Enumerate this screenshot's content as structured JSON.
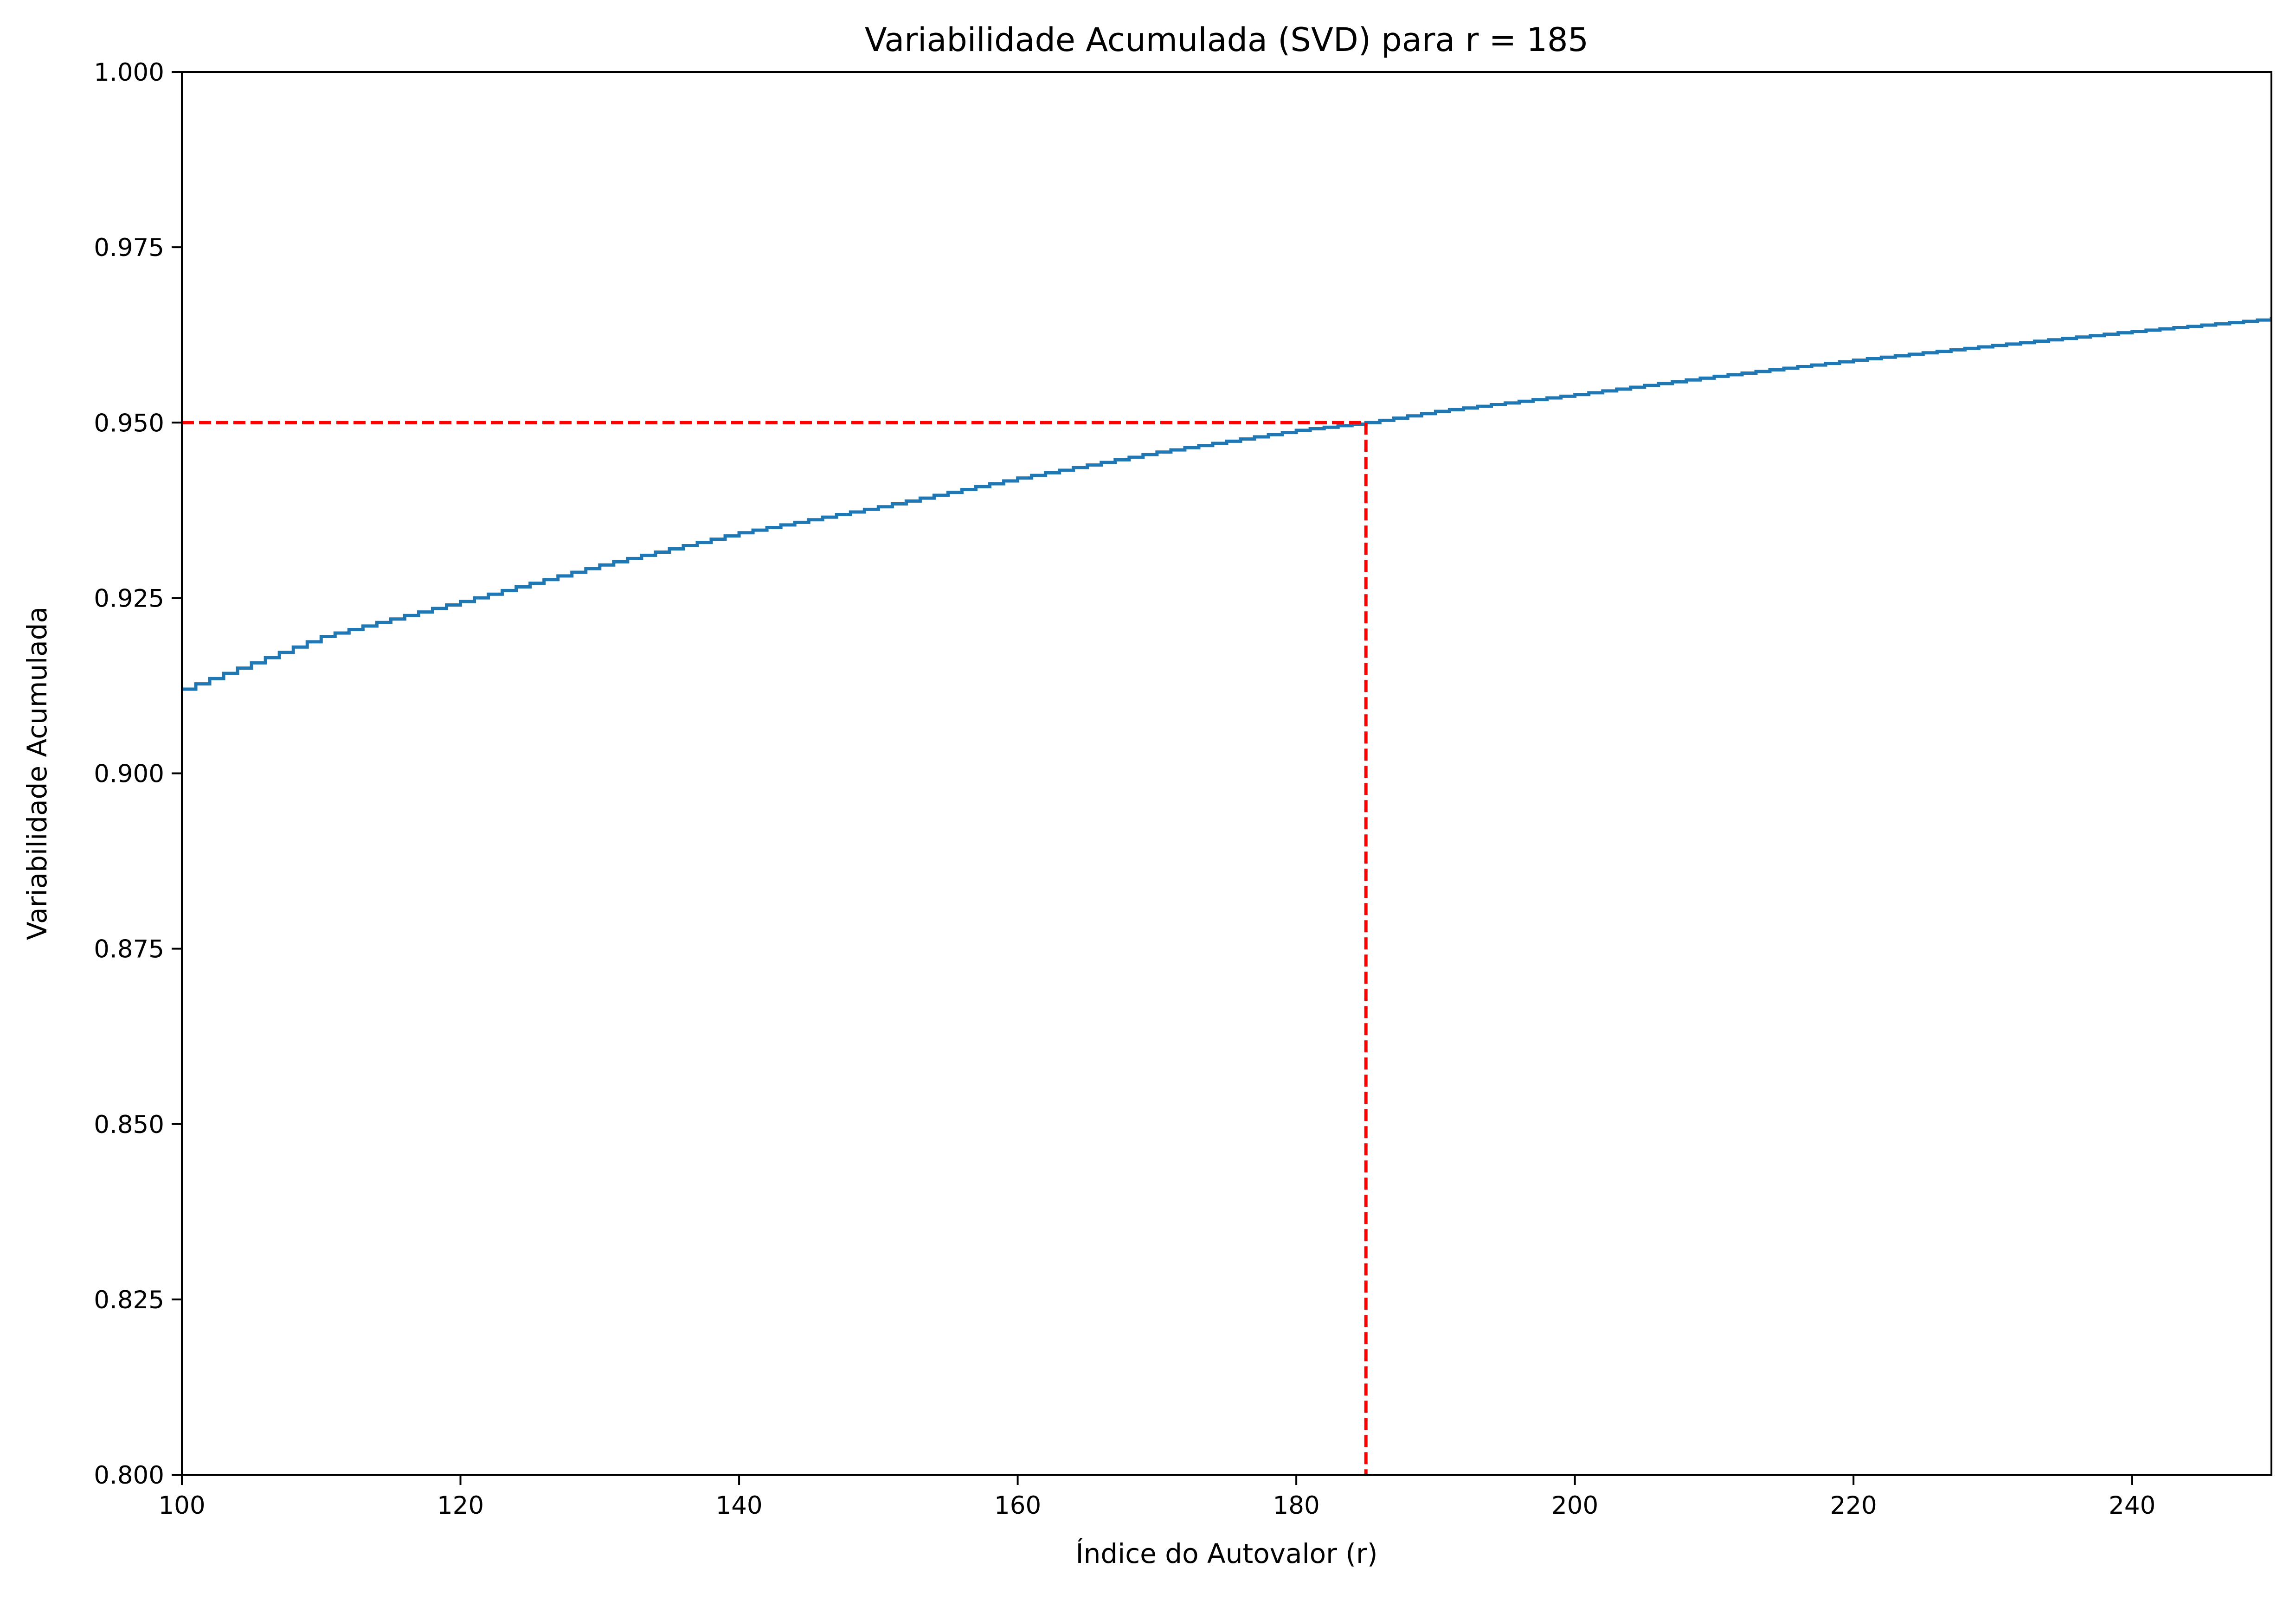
{
  "chart_data": {
    "type": "line",
    "title": "Variabilidade Acumulada (SVD) para r = 185",
    "xlabel": "Índice do Autovalor (r)",
    "ylabel": "Variabilidade Acumulada",
    "xlim": [
      100,
      250
    ],
    "ylim": [
      0.8,
      1.0
    ],
    "x_ticks": [
      100,
      120,
      140,
      160,
      180,
      200,
      220,
      240
    ],
    "x_tick_labels": [
      "100",
      "120",
      "140",
      "160",
      "180",
      "200",
      "220",
      "240"
    ],
    "y_ticks": [
      0.8,
      0.825,
      0.85,
      0.875,
      0.9,
      0.925,
      0.95,
      0.975,
      1.0
    ],
    "y_tick_labels": [
      "0.800",
      "0.825",
      "0.850",
      "0.875",
      "0.900",
      "0.925",
      "0.950",
      "0.975",
      "1.000"
    ],
    "grid": false,
    "series": [
      {
        "color": "#1f77b4",
        "step": true,
        "x": [
          100,
          110,
          120,
          130,
          140,
          150,
          160,
          170,
          180,
          185,
          190,
          200,
          210,
          220,
          230,
          240,
          250
        ],
        "y": [
          0.912,
          0.9195,
          0.9245,
          0.9297,
          0.9343,
          0.938,
          0.9421,
          0.9458,
          0.9489,
          0.95,
          0.9516,
          0.954,
          0.9566,
          0.9589,
          0.961,
          0.963,
          0.9648
        ]
      }
    ],
    "threshold": {
      "color": "#ff0000",
      "x": 185,
      "y": 0.95
    }
  }
}
